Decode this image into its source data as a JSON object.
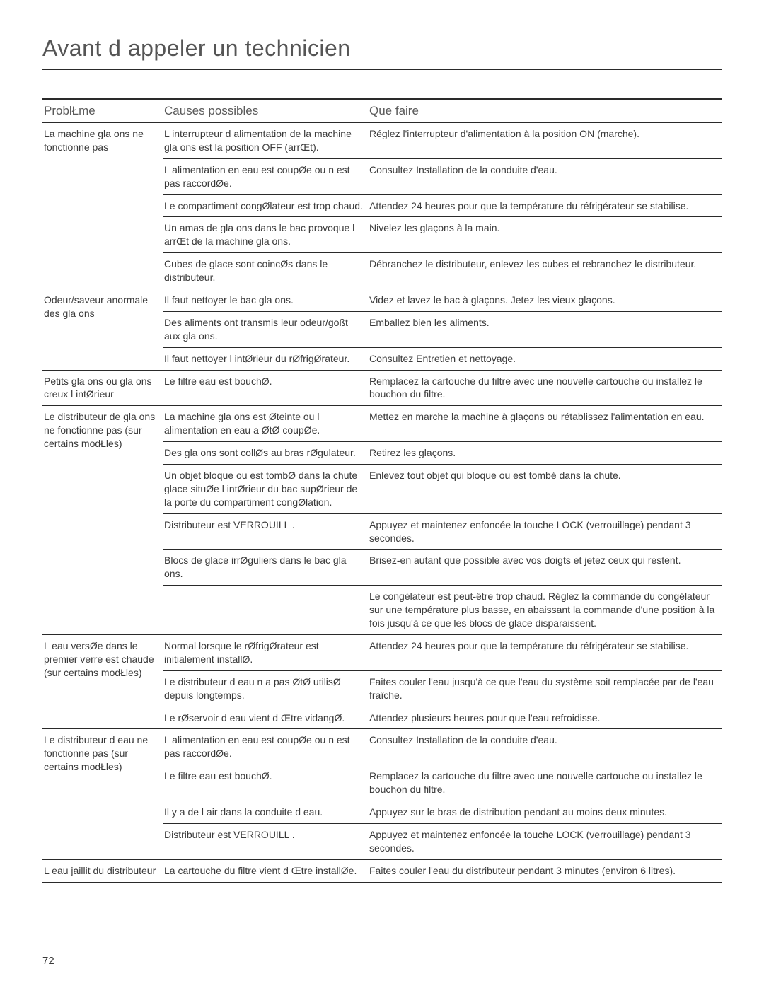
{
  "page_title": "Avant d appeler   un technicien",
  "page_number": "72",
  "columns": {
    "problem": "ProblŁme",
    "cause": "Causes possibles",
    "action": "Que faire"
  },
  "sections": [
    {
      "problem": "La machine   gla ons ne fonctionne pas",
      "rows": [
        {
          "cause": "L interrupteur d alimentation de la machine   gla ons est   la position OFF (arrŒt).",
          "action": "Réglez l'interrupteur d'alimentation à la position ON (marche)."
        },
        {
          "cause": "L alimentation en eau est coupØe ou n est pas raccordØe.",
          "action": "Consultez Installation de la conduite d'eau."
        },
        {
          "cause": "Le compartiment congØlateur est trop chaud.",
          "action": "Attendez 24 heures pour que la température du réfrigérateur se stabilise."
        },
        {
          "cause": "Un amas de gla ons dans le bac provoque l arrŒt de la machine   gla ons.",
          "action": "Nivelez les glaçons à la main."
        },
        {
          "cause": "Cubes de glace sont coincØs dans le distributeur.",
          "action": "Débranchez le distributeur, enlevez les cubes et rebranchez le distributeur."
        }
      ]
    },
    {
      "problem": "Odeur/saveur anormale des gla ons",
      "rows": [
        {
          "cause": "Il faut nettoyer le bac   gla ons.",
          "action": "Videz et lavez le bac à glaçons. Jetez les vieux glaçons."
        },
        {
          "cause": "Des aliments ont transmis leur odeur/goßt aux gla ons.",
          "action": "Emballez bien les aliments."
        },
        {
          "cause": "Il faut nettoyer l intØrieur du rØfrigØrateur.",
          "action": "Consultez Entretien et nettoyage."
        }
      ]
    },
    {
      "problem": "Petits gla ons ou gla ons creux   l intØrieur",
      "rows": [
        {
          "cause": "Le filtre   eau est bouchØ.",
          "action": "Remplacez la cartouche du filtre avec une nouvelle cartouche ou installez le bouchon du filtre."
        }
      ]
    },
    {
      "problem": "Le distributeur de gla ons ne fonctionne pas (sur certains modŁles)",
      "rows": [
        {
          "cause": "La machine   gla ons est Øteinte ou l alimentation en eau a ØtØ coupØe.",
          "action": "Mettez en marche la machine à glaçons ou rétablissez l'alimentation en eau."
        },
        {
          "cause": "Des gla ons sont collØs au bras rØgulateur.",
          "action": "Retirez les glaçons."
        },
        {
          "cause": "Un objet bloque ou est tombØ dans la chute   glace situØe   l intØrieur du bac supØrieur de la porte du compartiment congØlation.",
          "action": "Enlevez tout objet qui bloque ou est tombé dans la chute."
        },
        {
          "cause": "Distributeur est VERROUILL .",
          "action": "Appuyez et maintenez enfoncée la touche LOCK (verrouillage) pendant 3 secondes."
        },
        {
          "cause": "Blocs de glace irrØguliers dans le bac   gla ons.",
          "action": "Brisez-en autant que possible avec vos doigts et jetez ceux qui restent."
        },
        {
          "cause": "",
          "action": "Le congélateur est peut-être trop chaud. Réglez la commande du congélateur sur une température plus basse, en abaissant la commande d'une position à la fois jusqu'à ce que les blocs de glace disparaissent."
        }
      ]
    },
    {
      "problem": "L eau versØe dans le premier verre est chaude (sur certains modŁles)",
      "rows": [
        {
          "cause": "Normal lorsque le rØfrigØrateur est initialement installØ.",
          "action": "Attendez 24 heures pour que la température du réfrigérateur se stabilise."
        },
        {
          "cause": "Le distributeur d eau n a pas ØtØ utilisØ depuis longtemps.",
          "action": "Faites couler l'eau jusqu'à ce que l'eau du système soit remplacée par de l'eau fraîche."
        },
        {
          "cause": "Le rØservoir d eau vient d Œtre vidangØ.",
          "action": "Attendez plusieurs heures pour que l'eau refroidisse."
        }
      ]
    },
    {
      "problem": "Le distributeur d eau ne fonctionne pas (sur certains modŁles)",
      "rows": [
        {
          "cause": "L alimentation en eau est coupØe ou n est pas raccordØe.",
          "action": "Consultez Installation de la conduite d'eau."
        },
        {
          "cause": "Le filtre   eau est bouchØ.",
          "action": "Remplacez la cartouche du filtre avec une nouvelle cartouche ou installez le bouchon du filtre."
        },
        {
          "cause": "Il y a de l air dans la conduite d eau.",
          "action": "Appuyez sur le bras de distribution pendant au moins deux minutes."
        },
        {
          "cause": "Distributeur est VERROUILL .",
          "action": "Appuyez et maintenez enfoncée la touche LOCK (verrouillage) pendant 3 secondes."
        }
      ]
    },
    {
      "problem": "L eau jaillit du distributeur",
      "rows": [
        {
          "cause": "La cartouche du filtre vient d Œtre installØe.",
          "action": "Faites couler l'eau du distributeur pendant 3 minutes (environ 6 litres)."
        }
      ]
    }
  ]
}
